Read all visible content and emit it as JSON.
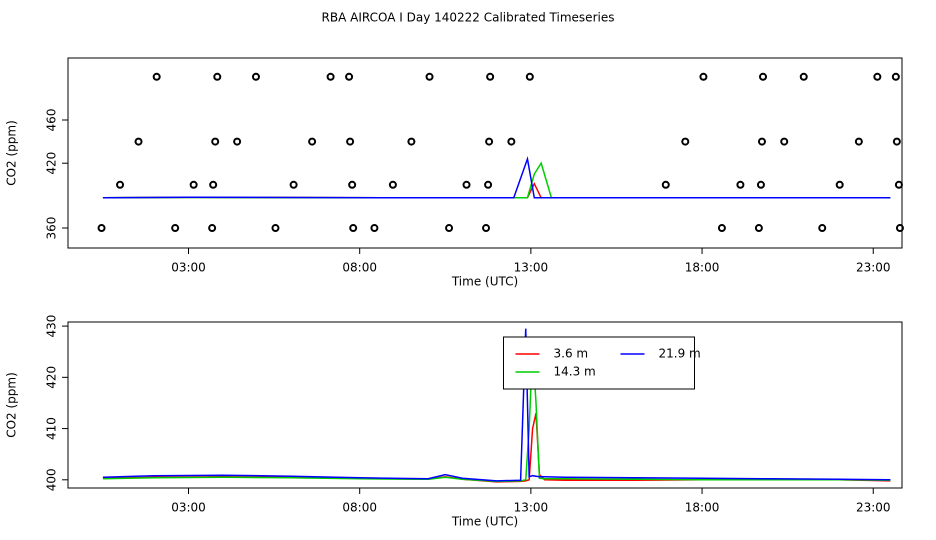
{
  "chart_data": [
    {
      "type": "line",
      "title": "RBA AIRCOA I  Day 140222  Calibrated Timeseries",
      "xlabel": "Time (UTC)",
      "ylabel": "CO2 (ppm)",
      "xlim": [
        -0.52,
        23.84
      ],
      "ylim": [
        341.5,
        517.4
      ],
      "xticks": [
        {
          "value": 3,
          "label": "03:00"
        },
        {
          "value": 8,
          "label": "08:00"
        },
        {
          "value": 13,
          "label": "13:00"
        },
        {
          "value": 18,
          "label": "18:00"
        },
        {
          "value": 23,
          "label": "23:00"
        }
      ],
      "yticks": [
        360,
        420,
        460
      ],
      "x": [
        0.5,
        3,
        6,
        9,
        11,
        12.5,
        12.9,
        13.1,
        13.3,
        13.6,
        16,
        20,
        23.5
      ],
      "series": [
        {
          "color": "#ff0000",
          "values": [
            388,
            388.4,
            388.2,
            388,
            388,
            388,
            388,
            401,
            388,
            388,
            388,
            388,
            388
          ]
        },
        {
          "color": "#00cc00",
          "values": [
            388,
            388.3,
            388.1,
            388,
            388,
            388,
            388,
            410,
            420,
            388,
            388,
            388,
            388
          ]
        },
        {
          "color": "#0000ff",
          "values": [
            388,
            388.5,
            388.3,
            388,
            388,
            388,
            424,
            388,
            388,
            388,
            388,
            388,
            388
          ]
        }
      ],
      "points": {
        "color": "#000000",
        "x": [
          2.07,
          3.84,
          4.97,
          7.15,
          7.69,
          10.04,
          11.81,
          12.97,
          18.04,
          19.78,
          20.97,
          23.12,
          23.66,
          1.54,
          3.78,
          4.42,
          6.61,
          7.72,
          9.51,
          11.78,
          12.43,
          17.51,
          19.75,
          20.4,
          22.58,
          23.69,
          1.0,
          3.15,
          3.72,
          6.07,
          7.78,
          8.97,
          11.12,
          11.75,
          16.94,
          19.12,
          19.72,
          22.02,
          23.75,
          0.46,
          2.61,
          3.69,
          5.54,
          7.81,
          8.43,
          10.61,
          11.69,
          18.58,
          19.66,
          21.51,
          23.78
        ],
        "values": [
          500,
          500,
          500,
          500,
          500,
          500,
          500,
          500,
          500,
          500,
          500,
          500,
          500,
          440,
          440,
          440,
          440,
          440,
          440,
          440,
          440,
          440,
          440,
          440,
          440,
          440,
          400,
          400,
          400,
          400,
          400,
          400,
          400,
          400,
          400,
          400,
          400,
          400,
          400,
          360,
          360,
          360,
          360,
          360,
          360,
          360,
          360,
          360,
          360,
          360,
          360
        ]
      }
    },
    {
      "type": "line",
      "xlabel": "Time (UTC)",
      "ylabel": "CO2 (ppm)",
      "xlim": [
        -0.52,
        23.84
      ],
      "ylim": [
        398.4,
        430.8
      ],
      "xticks": [
        {
          "value": 3,
          "label": "03:00"
        },
        {
          "value": 8,
          "label": "08:00"
        },
        {
          "value": 13,
          "label": "13:00"
        },
        {
          "value": 18,
          "label": "18:00"
        },
        {
          "value": 23,
          "label": "23:00"
        }
      ],
      "yticks": [
        400,
        410,
        420,
        430
      ],
      "legend": "top",
      "x": [
        0.5,
        2,
        4,
        6,
        8,
        10,
        10.5,
        11,
        12,
        12.7,
        12.85,
        12.95,
        13.05,
        13.15,
        13.25,
        13.4,
        14,
        16,
        18,
        20,
        22,
        23.5
      ],
      "series": [
        {
          "name": "3.6 m",
          "color": "#ff0000",
          "values": [
            400.3,
            400.5,
            400.6,
            400.5,
            400.3,
            400.1,
            400.6,
            400.1,
            399.6,
            399.7,
            399.8,
            400,
            410,
            413,
            401,
            400,
            399.9,
            399.9,
            400,
            400,
            400,
            399.8
          ]
        },
        {
          "name": "14.3 m",
          "color": "#00cc00",
          "values": [
            400.2,
            400.4,
            400.5,
            400.4,
            400.2,
            400.1,
            400.5,
            400.1,
            399.7,
            399.8,
            400,
            410,
            426,
            415,
            400.3,
            400.2,
            400.2,
            400.1,
            400,
            400,
            400,
            399.9
          ]
        },
        {
          "name": "21.9 m",
          "color": "#0000ff",
          "values": [
            400.5,
            400.8,
            400.9,
            400.7,
            400.4,
            400.2,
            401,
            400.3,
            399.8,
            399.9,
            429.5,
            400.6,
            400.8,
            400.7,
            400.6,
            400.6,
            400.5,
            400.4,
            400.3,
            400.2,
            400.1,
            400
          ]
        }
      ]
    }
  ]
}
